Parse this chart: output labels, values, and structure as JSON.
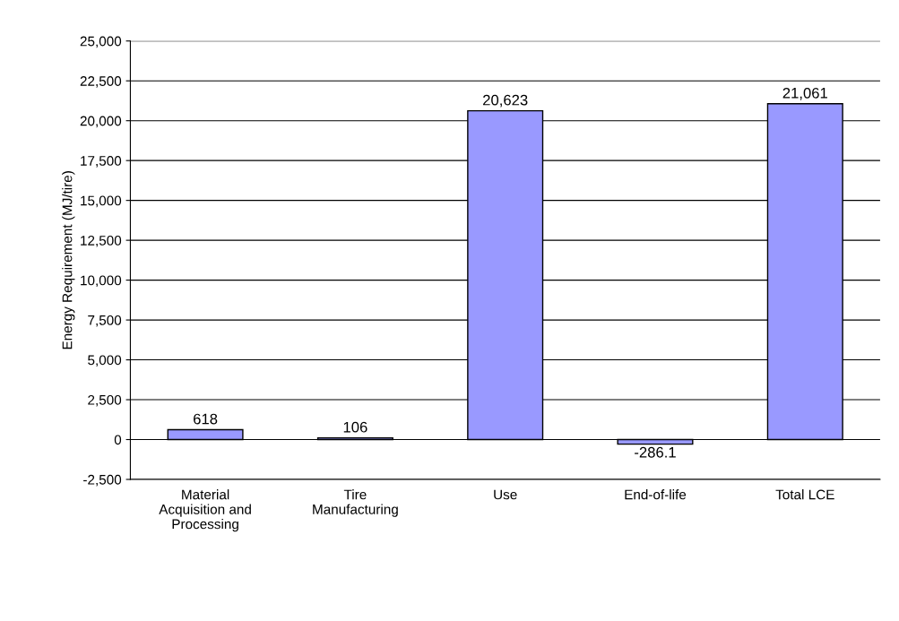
{
  "chart_data": {
    "type": "bar",
    "ylabel": "Energy Requirement (MJ/tire)",
    "categories": [
      "Material\nAcquisition and\nProcessing",
      "Tire\nManufacturing",
      "Use",
      "End-of-life",
      "Total LCE"
    ],
    "values": [
      618,
      106,
      20623,
      -286.1,
      21061
    ],
    "value_labels": [
      "618",
      "106",
      "20,623",
      "-286.1",
      "21,061"
    ],
    "color": "#9999ff",
    "ylim": [
      -2500,
      25000
    ],
    "yticks": [
      {
        "value": -2500,
        "label": "-2,500"
      },
      0,
      {
        "value": 2500,
        "label": "2,500"
      },
      {
        "value": 5000,
        "label": "5,000"
      },
      {
        "value": 7500,
        "label": "7,500"
      },
      {
        "value": 10000,
        "label": "10,000"
      },
      {
        "value": 12500,
        "label": "12,500"
      },
      {
        "value": 15000,
        "label": "15,000"
      },
      {
        "value": 17500,
        "label": "17,500"
      },
      {
        "value": 20000,
        "label": "20,000"
      },
      {
        "value": 22500,
        "label": "22,500"
      },
      {
        "value": 25000,
        "label": "25,000"
      }
    ],
    "grid": "y",
    "legend": false
  }
}
